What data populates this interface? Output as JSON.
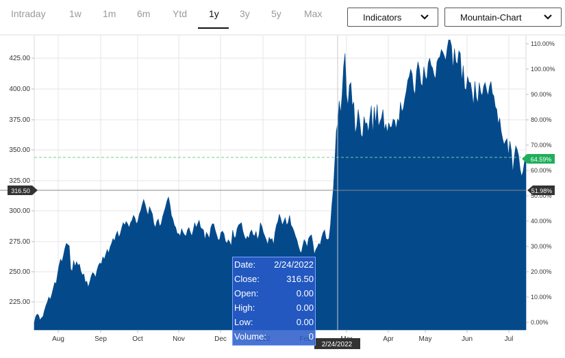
{
  "tabs": [
    {
      "label": "Intraday",
      "active": false
    },
    {
      "label": "1w",
      "active": false
    },
    {
      "label": "1m",
      "active": false
    },
    {
      "label": "6m",
      "active": false
    },
    {
      "label": "Ytd",
      "active": false
    },
    {
      "label": "1y",
      "active": true
    },
    {
      "label": "3y",
      "active": false
    },
    {
      "label": "5y",
      "active": false
    },
    {
      "label": "Max",
      "active": false
    }
  ],
  "controls": {
    "indicators_label": "Indicators",
    "chart_type_label": "Mountain-Chart"
  },
  "tooltip": {
    "rows": [
      {
        "label": "Date:",
        "value": "2/24/2022"
      },
      {
        "label": "Close:",
        "value": "316.50"
      },
      {
        "label": "Open:",
        "value": "0.00"
      },
      {
        "label": "High:",
        "value": "0.00"
      },
      {
        "label": "Low:",
        "value": "0.00"
      },
      {
        "label": "Volume:",
        "value": "0"
      }
    ]
  },
  "colors": {
    "area_fill": "#044a8b",
    "last_marker": "#1fae5b",
    "crosshair_marker": "#333333",
    "grid": "#e6e6e6"
  },
  "chart_data": {
    "type": "area",
    "title": "",
    "x_tick_labels": [
      "Aug",
      "Sep",
      "Oct",
      "Nov",
      "Dec",
      "2022",
      "Feb",
      "Mar",
      "Apr",
      "May",
      "Jun",
      "Jul"
    ],
    "left_axis": {
      "ticks": [
        "225.00",
        "250.00",
        "275.00",
        "300.00",
        "325.00",
        "350.00",
        "375.00",
        "400.00",
        "425.00"
      ],
      "range": [
        205,
        440
      ]
    },
    "right_axis": {
      "ticks": [
        "0.00%",
        "10.00%",
        "20.00%",
        "30.00%",
        "40.00%",
        "50.00%",
        "60.00%",
        "70.00%",
        "80.00%",
        "90.00%",
        "100.00%",
        "110.00%"
      ]
    },
    "grid": true,
    "crosshair": {
      "date": "2/24/2022",
      "price_label": "316.50",
      "percent_label": "51.98%"
    },
    "last_value_label": "64.59%",
    "reference_line_value": 343.6,
    "series": [
      {
        "values": [
          208,
          213,
          215,
          214,
          210,
          212,
          213,
          218,
          222,
          225,
          229,
          227,
          231,
          236,
          241,
          240,
          248,
          255,
          260,
          258,
          263,
          269,
          273,
          272,
          271,
          252,
          250,
          259,
          254,
          258,
          255,
          256,
          250,
          247,
          248,
          241,
          242,
          237,
          241,
          246,
          249,
          248,
          245,
          251,
          255,
          257,
          256,
          262,
          260,
          264,
          268,
          265,
          270,
          273,
          277,
          275,
          280,
          283,
          278,
          281,
          286,
          290,
          288,
          291,
          289,
          286,
          290,
          292,
          296,
          294,
          289,
          291,
          297,
          300,
          305,
          309,
          305,
          300,
          296,
          303,
          300,
          297,
          289,
          286,
          291,
          293,
          287,
          289,
          295,
          299,
          303,
          308,
          311,
          305,
          296,
          293,
          288,
          286,
          281,
          281,
          279,
          285,
          282,
          280,
          279,
          284,
          286,
          282,
          279,
          284,
          290,
          286,
          289,
          292,
          286,
          285,
          284,
          276,
          282,
          280,
          277,
          286,
          289,
          289,
          284,
          280,
          276,
          276,
          282,
          283,
          281,
          275,
          273,
          276,
          274,
          271,
          284,
          278,
          278,
          285,
          288,
          289,
          290,
          283,
          279,
          276,
          279,
          277,
          282,
          284,
          280,
          279,
          283,
          276,
          280,
          290,
          287,
          282,
          279,
          276,
          272,
          278,
          276,
          277,
          272,
          282,
          288,
          291,
          297,
          293,
          288,
          291,
          294,
          288,
          290,
          296,
          288,
          286,
          283,
          279,
          276,
          271,
          267,
          265,
          271,
          276,
          274,
          270,
          277,
          279,
          280,
          273,
          264,
          268,
          270,
          273,
          272,
          278,
          282,
          284,
          277,
          276,
          277,
          288,
          305,
          318,
          340,
          365,
          372,
          390,
          380,
          395,
          418,
          429,
          395,
          386,
          403,
          405,
          386,
          389,
          363,
          369,
          383,
          374,
          362,
          360,
          377,
          371,
          372,
          364,
          376,
          386,
          363,
          385,
          371,
          387,
          369,
          373,
          376,
          383,
          366,
          371,
          364,
          372,
          368,
          369,
          375,
          374,
          367,
          375,
          373,
          389,
          381,
          384,
          392,
          398,
          407,
          410,
          416,
          412,
          399,
          395,
          414,
          422,
          416,
          404,
          402,
          418,
          410,
          407,
          421,
          425,
          419,
          417,
          411,
          408,
          422,
          425,
          426,
          432,
          430,
          427,
          423,
          433,
          440,
          440,
          435,
          416,
          433,
          422,
          420,
          431,
          429,
          406,
          419,
          400,
          399,
          410,
          405,
          405,
          397,
          386,
          406,
          393,
          388,
          405,
          397,
          394,
          402,
          405,
          399,
          394,
          402,
          406,
          396,
          394,
          385,
          383,
          371,
          376,
          365,
          359,
          354,
          357,
          359,
          345,
          357,
          349,
          331,
          344,
          353,
          350,
          345,
          334,
          328,
          332,
          340,
          346
        ]
      }
    ]
  }
}
